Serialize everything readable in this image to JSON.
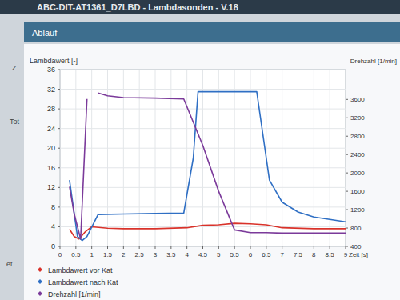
{
  "header": {
    "title": "ABC-DIT-AT1361_D7LBD - Lambdasonden - V.18",
    "tab": "Ablauf"
  },
  "background_labels": [
    "Z",
    "Tot",
    "et"
  ],
  "chart_data": {
    "type": "line",
    "ylabel": "Lambdawert [-]",
    "y2label": "Drehzahl [1/min]",
    "xlabel": "Zeit [s]",
    "xlim": [
      0,
      9
    ],
    "xticks": [
      0,
      0.5,
      1,
      1.5,
      2,
      2.5,
      3,
      3.5,
      4,
      4.5,
      5,
      5.5,
      6,
      6.5,
      7,
      7.5,
      8,
      8.5,
      9
    ],
    "ylim": [
      0,
      36
    ],
    "yticks": [
      0,
      4,
      8,
      12,
      16,
      20,
      24,
      28,
      32,
      36
    ],
    "y2lim": [
      400,
      4250
    ],
    "y2ticks": [
      400,
      800,
      1200,
      1600,
      2000,
      2400,
      2800,
      3200,
      3600
    ],
    "grid": true,
    "legend": "bottom",
    "series": [
      {
        "name": "Lambdawert vor Kat",
        "color": "#d9322a",
        "x": [
          0.3,
          0.45,
          0.6,
          0.8,
          1.0,
          1.5,
          2,
          3,
          4,
          4.5,
          5,
          5.5,
          6,
          6.5,
          7,
          8,
          9
        ],
        "values": [
          3.5,
          2,
          1.5,
          3,
          4,
          3.7,
          3.6,
          3.6,
          3.8,
          4.3,
          4.4,
          4.7,
          4.6,
          4.4,
          3.8,
          3.6,
          3.6
        ]
      },
      {
        "name": "Lambdawert nach Kat",
        "color": "#2f6fc4",
        "x": [
          0.3,
          0.55,
          0.7,
          0.85,
          1.2,
          2,
          3,
          3.9,
          4.2,
          4.35,
          5,
          6.2,
          6.6,
          7,
          7.5,
          8,
          8.5,
          9
        ],
        "values": [
          13.5,
          2,
          1.2,
          2,
          6.5,
          6.6,
          6.7,
          6.8,
          18,
          31.5,
          31.5,
          31.5,
          13.5,
          9,
          7,
          6,
          5.5,
          5
        ]
      },
      {
        "name": "Drehzahl [1/min]",
        "color": "#7b3a9a",
        "axis": "y2",
        "x": [
          0.3,
          0.45,
          0.65,
          0.85,
          1.0,
          1.2,
          1.5,
          2,
          3,
          3.9,
          4.5,
          5,
          5.5,
          6,
          6.5,
          7,
          8,
          9
        ],
        "values": [
          1700,
          1100,
          560,
          3610,
          null,
          3740,
          3680,
          3640,
          3630,
          3610,
          2600,
          1600,
          760,
          700,
          700,
          690,
          690,
          690
        ]
      }
    ]
  }
}
